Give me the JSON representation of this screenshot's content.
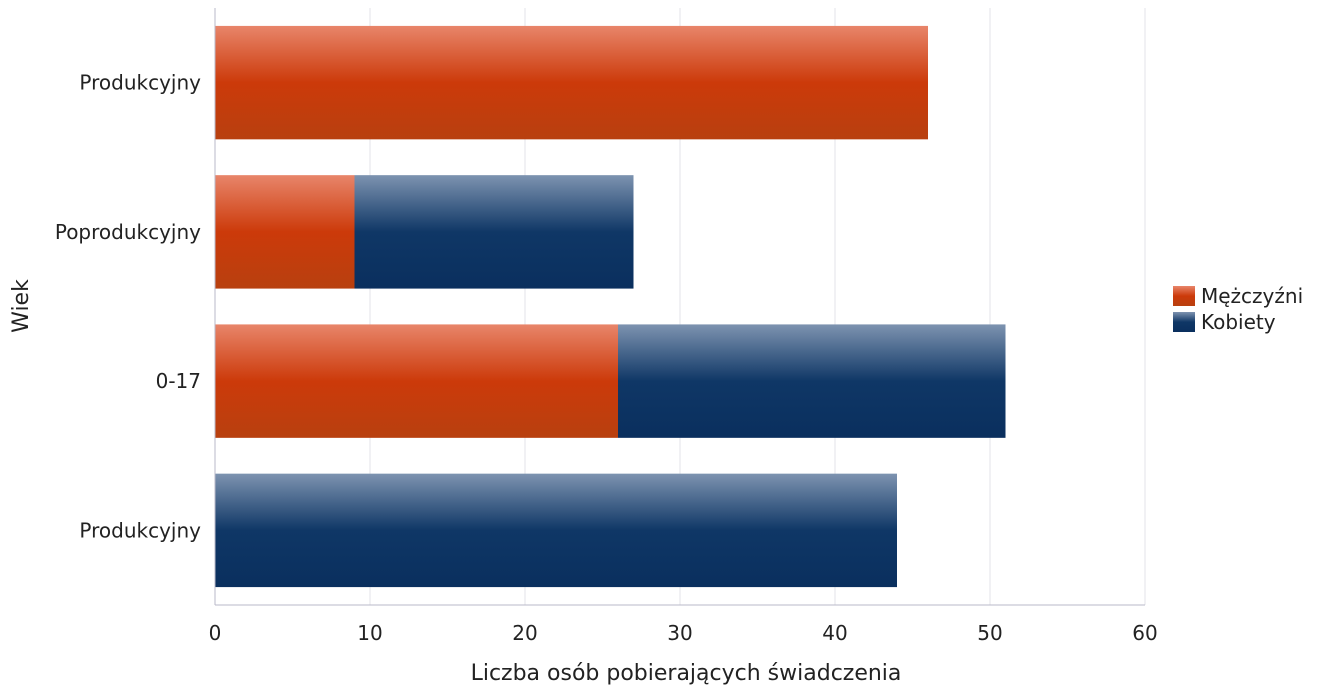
{
  "chart_data": {
    "type": "bar",
    "orientation": "horizontal",
    "stacked": true,
    "categories": [
      "Produkcyjny",
      "Poprodukcyjny",
      "0-17",
      "Produkcyjny"
    ],
    "series": [
      {
        "name": "Mężczyźni",
        "values": [
          46,
          9,
          26,
          0
        ],
        "color": "#c7421c"
      },
      {
        "name": "Kobiety",
        "values": [
          0,
          18,
          25,
          44
        ],
        "color": "#1a3f6e"
      }
    ],
    "xlabel": "Liczba osób pobierających świadczenia",
    "ylabel": "Wiek",
    "xlim": [
      0,
      60
    ],
    "xticks": [
      "0",
      "10",
      "20",
      "30",
      "40",
      "50",
      "60"
    ],
    "grid": true,
    "legend_position": "right"
  }
}
